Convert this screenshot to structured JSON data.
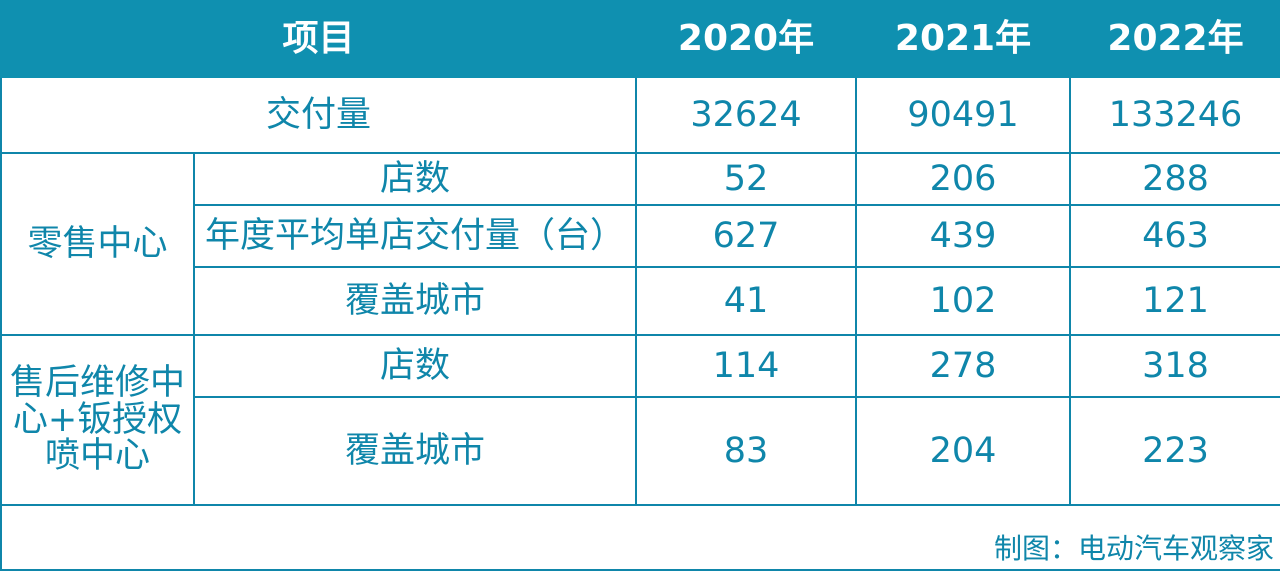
{
  "header": {
    "item_label": "项目",
    "years": [
      "2020年",
      "2021年",
      "2022年"
    ]
  },
  "rows": {
    "delivery": {
      "label": "交付量",
      "values": [
        "32624",
        "90491",
        "133246"
      ]
    },
    "retail": {
      "group_label": "零售中心",
      "stores": {
        "label": "店数",
        "values": [
          "52",
          "206",
          "288"
        ]
      },
      "avg_delivery": {
        "label": "年度平均单店交付量（台）",
        "values": [
          "627",
          "439",
          "463"
        ]
      },
      "cities": {
        "label": "覆盖城市",
        "values": [
          "41",
          "102",
          "121"
        ]
      }
    },
    "service": {
      "group_label": "售后维修中心+钣授权喷中心",
      "stores": {
        "label": "店数",
        "values": [
          "114",
          "278",
          "318"
        ]
      },
      "cities": {
        "label": "覆盖城市",
        "values": [
          "83",
          "204",
          "223"
        ]
      }
    }
  },
  "footer": {
    "credit": "制图：电动汽车观察家"
  },
  "colors": {
    "header_bg": "#0f90b0",
    "text": "#0f86aa",
    "border": "#0f86aa"
  }
}
